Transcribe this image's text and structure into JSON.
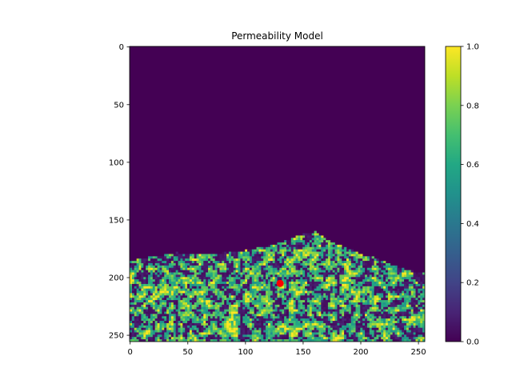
{
  "chart_data": {
    "type": "heatmap",
    "title": "Permeability Model",
    "xlabel": "",
    "ylabel": "",
    "grid_shape": [
      256,
      256
    ],
    "xlim": [
      0,
      255
    ],
    "ylim": [
      255,
      0
    ],
    "x_ticks": [
      0,
      50,
      100,
      150,
      200,
      250
    ],
    "y_ticks": [
      0,
      50,
      100,
      150,
      200,
      250
    ],
    "colormap": "viridis",
    "colorbar": {
      "range": [
        0.0,
        1.0
      ],
      "ticks": [
        "0.0",
        "0.2",
        "0.4",
        "0.6",
        "0.8",
        "1.0"
      ],
      "placement": "right"
    },
    "background_value": 0.0,
    "region_description_upper_boundary": [
      [
        0,
        185
      ],
      [
        10,
        183
      ],
      [
        20,
        181
      ],
      [
        30,
        180
      ],
      [
        40,
        178
      ],
      [
        50,
        179
      ],
      [
        60,
        180
      ],
      [
        70,
        179
      ],
      [
        80,
        178
      ],
      [
        90,
        177
      ],
      [
        100,
        176
      ],
      [
        110,
        174
      ],
      [
        120,
        172
      ],
      [
        130,
        169
      ],
      [
        140,
        166
      ],
      [
        145,
        163
      ],
      [
        150,
        162
      ],
      [
        155,
        161
      ],
      [
        160,
        160
      ],
      [
        165,
        163
      ],
      [
        170,
        167
      ],
      [
        180,
        171
      ],
      [
        190,
        175
      ],
      [
        200,
        180
      ],
      [
        210,
        182
      ],
      [
        220,
        186
      ],
      [
        230,
        190
      ],
      [
        240,
        193
      ],
      [
        250,
        195
      ],
      [
        255,
        196
      ]
    ],
    "marker": {
      "x": 130,
      "y": 205,
      "color": "#ff0000"
    },
    "grid": false
  }
}
